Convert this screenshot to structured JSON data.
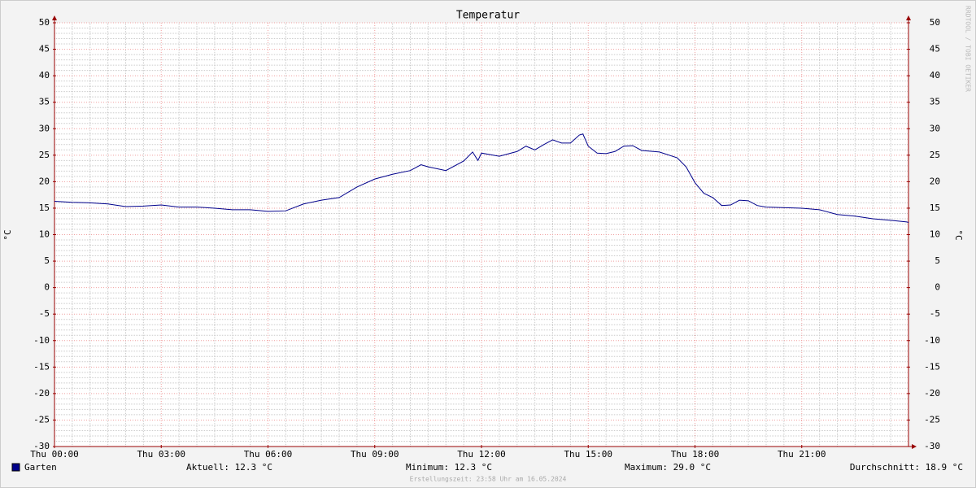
{
  "chart_data": {
    "type": "line",
    "title": "Temperatur",
    "ylabel": "°C",
    "watermark": "RRDTOOL / TOBI OETIKER",
    "xlim": [
      0,
      24
    ],
    "xticks": [
      {
        "value": 0,
        "label": "Thu 00:00"
      },
      {
        "value": 3,
        "label": "Thu 03:00"
      },
      {
        "value": 6,
        "label": "Thu 06:00"
      },
      {
        "value": 9,
        "label": "Thu 09:00"
      },
      {
        "value": 12,
        "label": "Thu 12:00"
      },
      {
        "value": 15,
        "label": "Thu 15:00"
      },
      {
        "value": 18,
        "label": "Thu 18:00"
      },
      {
        "value": 21,
        "label": "Thu 21:00"
      }
    ],
    "ylim": [
      -30,
      50
    ],
    "yticks": [
      -30,
      -25,
      -20,
      -15,
      -10,
      -5,
      0,
      5,
      10,
      15,
      20,
      25,
      30,
      35,
      40,
      45,
      50
    ],
    "grid": true,
    "x": [
      0,
      0.5,
      1,
      1.5,
      2,
      2.5,
      3,
      3.5,
      4,
      4.5,
      5,
      5.5,
      6,
      6.5,
      7,
      7.5,
      8,
      8.5,
      9,
      9.5,
      10,
      10.3,
      10.5,
      11,
      11.5,
      11.75,
      11.9,
      12,
      12.5,
      13,
      13.25,
      13.5,
      13.75,
      14,
      14.25,
      14.5,
      14.75,
      14.85,
      15,
      15.25,
      15.5,
      15.75,
      16,
      16.25,
      16.5,
      17,
      17.5,
      17.75,
      18,
      18.25,
      18.5,
      18.75,
      19,
      19.25,
      19.5,
      19.75,
      20,
      21,
      21.5,
      22,
      22.5,
      23,
      23.5,
      23.95,
      24
    ],
    "series": [
      {
        "name": "Garten",
        "color": "#00008b",
        "values": [
          16.3,
          16.1,
          16.0,
          15.8,
          15.3,
          15.4,
          15.6,
          15.2,
          15.2,
          15.0,
          14.7,
          14.7,
          14.4,
          14.5,
          15.8,
          16.5,
          17.0,
          19.0,
          20.5,
          21.4,
          22.1,
          23.2,
          22.8,
          22.1,
          23.9,
          25.6,
          24.0,
          25.4,
          24.8,
          25.7,
          26.7,
          26.0,
          27.0,
          27.9,
          27.3,
          27.3,
          28.8,
          29.0,
          26.7,
          25.4,
          25.3,
          25.7,
          26.7,
          26.8,
          25.9,
          25.6,
          24.5,
          22.8,
          19.8,
          17.8,
          17.0,
          15.5,
          15.6,
          16.5,
          16.4,
          15.5,
          15.2,
          15.0,
          14.7,
          13.8,
          13.5,
          13.0,
          12.7,
          12.4,
          12.3
        ]
      }
    ],
    "legend": {
      "current": "Aktuell: 12.3 °C",
      "minimum": "Minimum: 12.3 °C",
      "maximum": "Maximum: 29.0 °C",
      "average": "Durchschnitt: 18.9 °C"
    },
    "footer": "Erstellungszeit: 23:58 Uhr am 16.05.2024"
  }
}
